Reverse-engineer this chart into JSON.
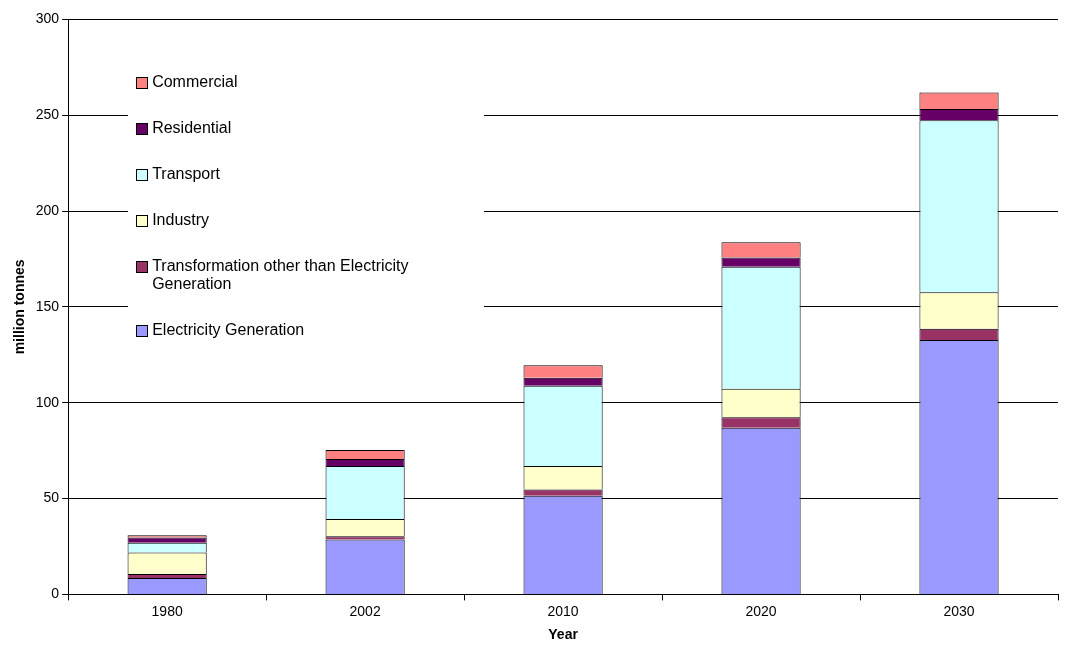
{
  "chart_data": {
    "type": "bar",
    "stacked": true,
    "xlabel": "Year",
    "ylabel": "million tonnes",
    "categories": [
      "1980",
      "2002",
      "2010",
      "2020",
      "2030"
    ],
    "ylim": [
      0,
      300
    ],
    "yticks": [
      0,
      50,
      100,
      150,
      200,
      250,
      300
    ],
    "grid": "y",
    "legend": "top left",
    "series": [
      {
        "name": "Electricity Generation",
        "color": "#9999ff",
        "values": [
          8.5,
          28.7,
          51.5,
          87,
          132.7
        ]
      },
      {
        "name": "Transformation other than Electricity Generation",
        "color": "#993366",
        "values": [
          2.1,
          1.6,
          3.2,
          5.4,
          5.9
        ]
      },
      {
        "name": "Industry",
        "color": "#ffffcc",
        "values": [
          11.2,
          9,
          12.3,
          14.9,
          19.1
        ]
      },
      {
        "name": "Transport",
        "color": "#ccffff",
        "values": [
          5.2,
          27.7,
          41.9,
          63.7,
          89.7
        ]
      },
      {
        "name": "Residential",
        "color": "#660066",
        "values": [
          2.7,
          3.6,
          4.2,
          4.8,
          5.9
        ]
      },
      {
        "name": "Commercial",
        "color": "#ff8080",
        "values": [
          1.1,
          4.8,
          6.4,
          7.9,
          8.5
        ]
      }
    ]
  }
}
